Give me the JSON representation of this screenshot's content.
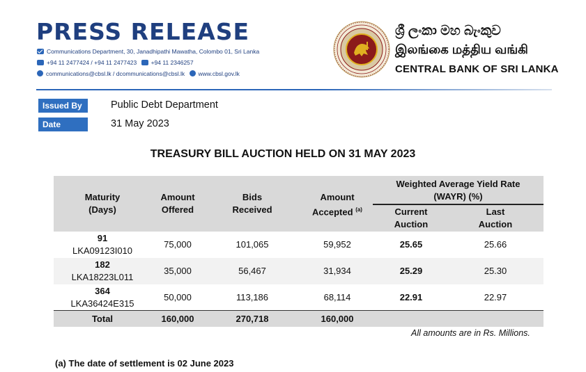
{
  "header": {
    "title": "PRESS RELEASE",
    "address": "Communications Department, 30, Janadhipathi Mawatha, Colombo 01, Sri Lanka",
    "phone": "+94 11 2477424 / +94 11 2477423",
    "fax": "+94 11 2346257",
    "emails": "communications@cbsl.lk / dcommunications@cbsl.lk",
    "website": "www.cbsl.gov.lk",
    "bank_sinhala": "ශ්‍රී ලංකා මහ බැංකුව",
    "bank_tamil": "இலங்கை மத்திய வங்கி",
    "bank_english": "CENTRAL BANK OF SRI LANKA",
    "colors": {
      "brand_blue": "#1f3f7f",
      "label_blue": "#2f6fc0",
      "seal_red": "#8b1a1a",
      "seal_gold": "#e0b020"
    }
  },
  "meta": {
    "issued_by_label": "Issued By",
    "issued_by_value": "Public Debt Department",
    "date_label": "Date",
    "date_value": "31 May 2023"
  },
  "heading": "TREASURY BILL AUCTION HELD ON 31 MAY 2023",
  "table": {
    "headers": {
      "maturity_1": "Maturity",
      "maturity_2": "(Days)",
      "offered_1": "Amount",
      "offered_2": "Offered",
      "bids_1": "Bids",
      "bids_2": "Received",
      "accepted_1": "Amount",
      "accepted_2": "Accepted",
      "accepted_sup": "(a)",
      "wayr_1": "Weighted Average Yield Rate",
      "wayr_2": "(WAYR) (%)",
      "current_1": "Current",
      "current_2": "Auction",
      "last_1": "Last",
      "last_2": "Auction"
    },
    "rows": [
      {
        "days": "91",
        "code": "LKA09123I010",
        "offered": "75,000",
        "bids": "101,065",
        "accepted": "59,952",
        "current": "25.65",
        "last": "25.66"
      },
      {
        "days": "182",
        "code": "LKA18223L011",
        "offered": "35,000",
        "bids": "56,467",
        "accepted": "31,934",
        "current": "25.29",
        "last": "25.30"
      },
      {
        "days": "364",
        "code": "LKA36424E315",
        "offered": "50,000",
        "bids": "113,186",
        "accepted": "68,114",
        "current": "22.91",
        "last": "22.97"
      }
    ],
    "total": {
      "label": "Total",
      "offered": "160,000",
      "bids": "270,718",
      "accepted": "160,000"
    }
  },
  "amounts_note": "All amounts are in Rs. Millions.",
  "settlement_note": "(a) The date of settlement is 02 June 2023"
}
